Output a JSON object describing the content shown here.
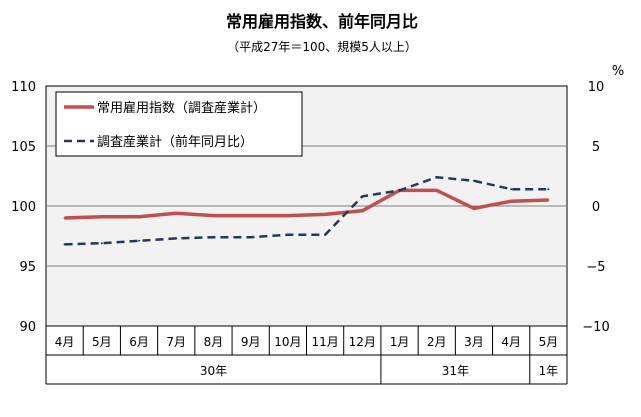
{
  "chart_data": {
    "type": "line",
    "title": "常用雇用指数、前年同月比",
    "subtitle": "（平成27年＝100、規模5人以上）",
    "categories": [
      "4月",
      "5月",
      "6月",
      "7月",
      "8月",
      "9月",
      "10月",
      "11月",
      "12月",
      "1月",
      "2月",
      "3月",
      "4月",
      "5月"
    ],
    "groups": [
      {
        "label": "30年",
        "span": 9
      },
      {
        "label": "31年",
        "span": 4
      },
      {
        "label": "1年",
        "span": 1
      }
    ],
    "left_axis": {
      "ylim": [
        90,
        110
      ],
      "ticks": [
        "90",
        "95",
        "100",
        "105",
        "110"
      ]
    },
    "right_axis": {
      "unit": "%",
      "ylim": [
        -10,
        10
      ],
      "ticks": [
        "−10",
        "−5",
        "0",
        "5",
        "10"
      ]
    },
    "series": [
      {
        "name": "常用雇用指数（調査産業計）",
        "axis": "left",
        "color": "#c0504d",
        "style": "solid",
        "values": [
          99.0,
          99.1,
          99.1,
          99.4,
          99.2,
          99.2,
          99.2,
          99.3,
          99.6,
          101.3,
          101.3,
          99.8,
          100.4,
          100.5
        ]
      },
      {
        "name": "調査産業計（前年同月比）",
        "axis": "right",
        "color": "#1f3864",
        "style": "dashed",
        "values": [
          -3.2,
          -3.1,
          -2.9,
          -2.7,
          -2.6,
          -2.6,
          -2.4,
          -2.4,
          0.8,
          1.3,
          2.4,
          2.1,
          1.4,
          1.4
        ]
      }
    ],
    "legend": "top-left",
    "grid": true
  }
}
